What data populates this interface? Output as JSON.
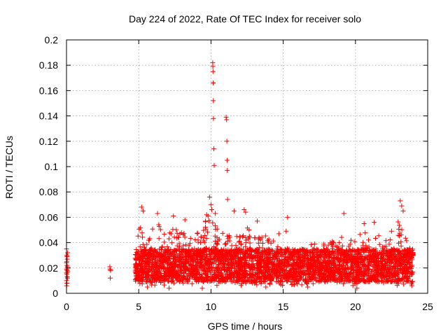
{
  "chart_data": {
    "type": "scatter",
    "title": "Day 224 of 2022, Rate Of TEC Index for receiver solo",
    "xlabel": "GPS time / hours",
    "ylabel": "ROTI / TECUs",
    "xlim": [
      0,
      25
    ],
    "ylim": [
      0,
      0.2
    ],
    "xticks": [
      "0",
      "5",
      "10",
      "15",
      "20",
      "25"
    ],
    "yticks": [
      "0",
      "0.02",
      "0.04",
      "0.06",
      "0.08",
      "0.1",
      "0.12",
      "0.14",
      "0.16",
      "0.18",
      "0.2"
    ],
    "grid": true,
    "marker": "+",
    "series_color": "#ff0000",
    "points": [
      [
        0.0,
        0.035
      ],
      [
        0.02,
        0.03
      ],
      [
        0.05,
        0.027
      ],
      [
        0.0,
        0.024
      ],
      [
        0.03,
        0.022
      ],
      [
        0.06,
        0.02
      ],
      [
        0.01,
        0.019
      ],
      [
        0.04,
        0.018
      ],
      [
        0.08,
        0.017
      ],
      [
        0.0,
        0.016
      ],
      [
        0.02,
        0.015
      ],
      [
        0.05,
        0.013
      ],
      [
        0.07,
        0.012
      ],
      [
        0.0,
        0.01
      ],
      [
        0.03,
        0.008
      ],
      [
        0.01,
        0.006
      ],
      [
        0.06,
        0.021
      ],
      [
        0.04,
        0.029
      ],
      [
        0.08,
        0.032
      ],
      [
        0.02,
        0.025
      ],
      [
        3.0,
        0.021
      ],
      [
        3.02,
        0.019
      ],
      [
        3.05,
        0.018
      ],
      [
        3.03,
        0.012
      ],
      [
        9.9,
        0.076
      ],
      [
        10.0,
        0.07
      ],
      [
        10.05,
        0.066
      ],
      [
        10.12,
        0.182
      ],
      [
        10.13,
        0.179
      ],
      [
        10.14,
        0.175
      ],
      [
        10.15,
        0.166
      ],
      [
        10.16,
        0.152
      ],
      [
        10.17,
        0.138
      ],
      [
        10.2,
        0.114
      ],
      [
        10.22,
        0.101
      ],
      [
        11.05,
        0.139
      ],
      [
        11.08,
        0.137
      ],
      [
        11.1,
        0.12
      ],
      [
        11.12,
        0.105
      ],
      [
        11.13,
        0.097
      ],
      [
        11.15,
        0.074
      ],
      [
        9.7,
        0.062
      ],
      [
        9.8,
        0.061
      ],
      [
        10.3,
        0.063
      ],
      [
        11.6,
        0.065
      ],
      [
        12.3,
        0.066
      ],
      [
        12.4,
        0.064
      ],
      [
        5.2,
        0.068
      ],
      [
        5.3,
        0.065
      ],
      [
        6.3,
        0.063
      ],
      [
        7.4,
        0.061
      ],
      [
        8.2,
        0.058
      ],
      [
        19.2,
        0.063
      ],
      [
        20.6,
        0.055
      ],
      [
        21.3,
        0.056
      ],
      [
        23.1,
        0.073
      ],
      [
        23.2,
        0.069
      ],
      [
        23.3,
        0.065
      ],
      [
        15.3,
        0.06
      ],
      [
        15.2,
        0.049
      ],
      [
        13.2,
        0.057
      ],
      [
        14.7,
        0.047
      ],
      [
        22.5,
        0.049
      ],
      [
        18.4,
        0.041
      ],
      [
        4.8,
        0.022
      ],
      [
        4.9,
        0.018
      ],
      [
        5.6,
        0.005
      ],
      [
        7.1,
        0.004
      ],
      [
        9.4,
        0.004
      ],
      [
        13.8,
        0.005
      ],
      [
        16.7,
        0.005
      ],
      [
        20.1,
        0.004
      ],
      [
        23.9,
        0.006
      ]
    ],
    "dense_band": {
      "x_range": [
        4.75,
        24.0
      ],
      "typical_range": [
        0.009,
        0.035
      ],
      "peak_extent": [
        [
          4.75,
          0.03
        ],
        [
          5.0,
          0.052
        ],
        [
          5.5,
          0.058
        ],
        [
          6.0,
          0.05
        ],
        [
          6.5,
          0.056
        ],
        [
          7.0,
          0.048
        ],
        [
          7.5,
          0.052
        ],
        [
          8.0,
          0.05
        ],
        [
          8.5,
          0.054
        ],
        [
          9.0,
          0.052
        ],
        [
          9.5,
          0.056
        ],
        [
          10.0,
          0.06
        ],
        [
          10.5,
          0.05
        ],
        [
          11.0,
          0.048
        ],
        [
          11.5,
          0.052
        ],
        [
          12.0,
          0.05
        ],
        [
          12.5,
          0.056
        ],
        [
          13.0,
          0.046
        ],
        [
          13.5,
          0.05
        ],
        [
          14.0,
          0.044
        ],
        [
          14.5,
          0.04
        ],
        [
          15.0,
          0.038
        ],
        [
          15.5,
          0.034
        ],
        [
          16.0,
          0.032
        ],
        [
          16.5,
          0.036
        ],
        [
          17.0,
          0.04
        ],
        [
          17.5,
          0.038
        ],
        [
          18.0,
          0.042
        ],
        [
          18.5,
          0.04
        ],
        [
          19.0,
          0.044
        ],
        [
          19.5,
          0.046
        ],
        [
          20.0,
          0.042
        ],
        [
          20.5,
          0.05
        ],
        [
          21.0,
          0.044
        ],
        [
          21.5,
          0.048
        ],
        [
          22.0,
          0.042
        ],
        [
          22.5,
          0.044
        ],
        [
          23.0,
          0.058
        ],
        [
          23.5,
          0.044
        ],
        [
          24.0,
          0.036
        ]
      ]
    }
  }
}
